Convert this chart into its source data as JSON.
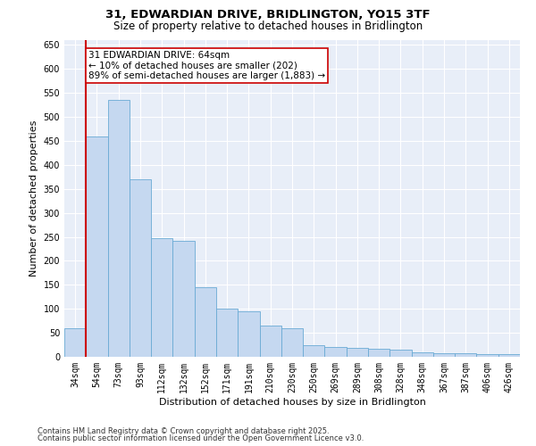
{
  "title_line1": "31, EDWARDIAN DRIVE, BRIDLINGTON, YO15 3TF",
  "title_line2": "Size of property relative to detached houses in Bridlington",
  "xlabel": "Distribution of detached houses by size in Bridlington",
  "ylabel": "Number of detached properties",
  "categories": [
    "34sqm",
    "54sqm",
    "73sqm",
    "93sqm",
    "112sqm",
    "132sqm",
    "152sqm",
    "171sqm",
    "191sqm",
    "210sqm",
    "230sqm",
    "250sqm",
    "269sqm",
    "289sqm",
    "308sqm",
    "328sqm",
    "348sqm",
    "367sqm",
    "387sqm",
    "406sqm",
    "426sqm"
  ],
  "values": [
    60,
    460,
    535,
    370,
    248,
    242,
    145,
    100,
    95,
    65,
    60,
    25,
    20,
    18,
    16,
    14,
    10,
    8,
    7,
    6,
    5
  ],
  "bar_color": "#c5d8f0",
  "bar_edgecolor": "#6aaad4",
  "annotation_text": "31 EDWARDIAN DRIVE: 64sqm\n← 10% of detached houses are smaller (202)\n89% of semi-detached houses are larger (1,883) →",
  "annotation_box_color": "white",
  "annotation_box_edgecolor": "#cc0000",
  "ylim": [
    0,
    660
  ],
  "yticks": [
    0,
    50,
    100,
    150,
    200,
    250,
    300,
    350,
    400,
    450,
    500,
    550,
    600,
    650
  ],
  "background_color": "#e8eef8",
  "grid_color": "#d0d8e8",
  "footnote_line1": "Contains HM Land Registry data © Crown copyright and database right 2025.",
  "footnote_line2": "Contains public sector information licensed under the Open Government Licence v3.0.",
  "title_fontsize": 9.5,
  "subtitle_fontsize": 8.5,
  "axis_label_fontsize": 8,
  "tick_fontsize": 7,
  "annotation_fontsize": 7.5,
  "footnote_fontsize": 6
}
